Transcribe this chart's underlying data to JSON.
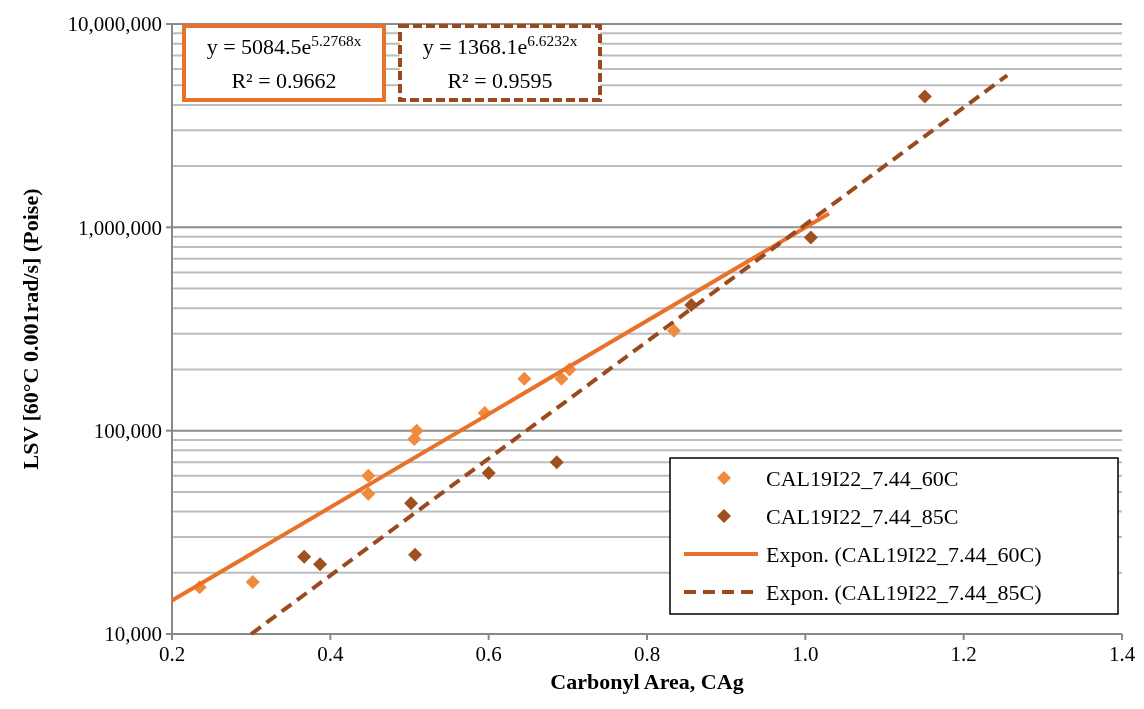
{
  "chart_data": {
    "type": "scatter",
    "xlabel": "Carbonyl Area, CAg",
    "ylabel": "LSV [60°C 0.001rad/s] (Poise)",
    "log": "y",
    "grid": "y",
    "legend": "bottom right",
    "marker": "diamond",
    "xlim": [
      0.2,
      1.4
    ],
    "xticks": [
      0.2,
      0.4,
      0.6,
      0.8,
      {
        "value": 1,
        "label": "1.0"
      },
      1.2,
      1.4
    ],
    "ylim": [
      10000,
      10000000
    ],
    "yticks": [
      {
        "value": 10000,
        "label": "10,000"
      },
      {
        "value": 100000,
        "label": "100,000"
      },
      {
        "value": 1000000,
        "label": "1,000,000"
      },
      {
        "value": 10000000,
        "label": "10,000,000"
      }
    ],
    "annotations": [
      "y = 5084.5e$^{5.2768x}$",
      "R² = 0.9662",
      "y = 1368.1e$^{6.6232x}$",
      "R² = 0.9595"
    ],
    "series": [
      {
        "name": "CAL19I22_7.44_60C",
        "color": "#f08a3c",
        "x": [
          0.235,
          0.302,
          0.448,
          0.448,
          0.506,
          0.509,
          0.595,
          0.645,
          0.692,
          0.702,
          0.834
        ],
        "values": [
          17000,
          18000,
          60000,
          49000,
          91000,
          100000,
          122000,
          180000,
          180000,
          200000,
          310000
        ]
      },
      {
        "name": "CAL19I22_7.44_85C",
        "color": "#a0501e",
        "x": [
          0.367,
          0.387,
          0.502,
          0.507,
          0.6,
          0.686,
          0.856,
          1.007,
          1.151
        ],
        "values": [
          24000,
          22000,
          44000,
          24500,
          62000,
          70000,
          415000,
          890000,
          4400000
        ]
      },
      {
        "name": "Expon. (CAL19I22_7.44_60C)",
        "type": "line",
        "line_style": "solid",
        "marker": "none",
        "color": "#e8722a",
        "x": [
          0.2,
          1.03
        ],
        "values": [
          14600,
          1170000
        ]
      },
      {
        "name": "Expon. (CAL19I22_7.44_85C)",
        "type": "line",
        "line_style": "dashed",
        "marker": "none",
        "color": "#9b4a1e",
        "x": [
          0.3,
          1.255
        ],
        "values": [
          10000,
          5590000
        ]
      }
    ]
  }
}
